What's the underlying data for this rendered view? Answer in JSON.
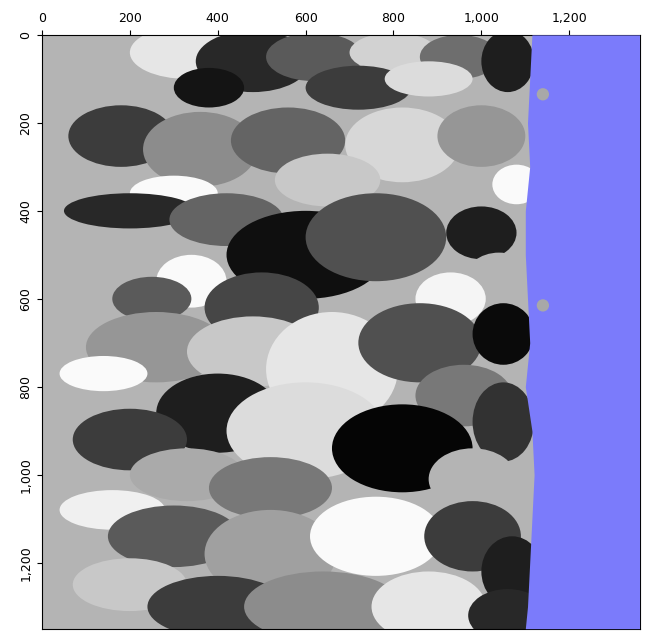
{
  "chart_data": {
    "type": "facies_map",
    "xlim": [
      0,
      1360
    ],
    "ylim": [
      1350,
      0
    ],
    "xticks": [
      0,
      200,
      400,
      600,
      800,
      {
        "value": 1000,
        "label": "1,000"
      },
      {
        "value": 1200,
        "label": "1,200"
      }
    ],
    "yticks": [
      0,
      200,
      400,
      600,
      800,
      {
        "value": 1000,
        "label": "1,000"
      },
      {
        "value": 1200,
        "label": "1,200"
      }
    ],
    "background": "#b4b4b4",
    "water_color": "#7b7bfb",
    "dot_color": "#a8a8a8",
    "boundary": {
      "y": [
        0,
        100,
        200,
        300,
        400,
        500,
        600,
        700,
        800,
        900,
        1000,
        1100,
        1200,
        1300,
        1350
      ],
      "x": [
        1115,
        1110,
        1105,
        1110,
        1100,
        1100,
        1105,
        1110,
        1100,
        1115,
        1120,
        1115,
        1110,
        1105,
        1100
      ]
    },
    "dots": [
      {
        "x": 1140,
        "y": 135,
        "r": 14
      },
      {
        "x": 1140,
        "y": 615,
        "r": 14
      }
    ],
    "lenses": [
      {
        "x": 330,
        "y": 40,
        "w": 260,
        "h": 120,
        "shade": 230
      },
      {
        "x": 480,
        "y": 60,
        "w": 260,
        "h": 140,
        "shade": 40
      },
      {
        "x": 620,
        "y": 50,
        "w": 220,
        "h": 110,
        "shade": 90
      },
      {
        "x": 800,
        "y": 40,
        "w": 200,
        "h": 90,
        "shade": 210
      },
      {
        "x": 950,
        "y": 50,
        "w": 180,
        "h": 100,
        "shade": 110
      },
      {
        "x": 1060,
        "y": 60,
        "w": 120,
        "h": 140,
        "shade": 30
      },
      {
        "x": 380,
        "y": 120,
        "w": 160,
        "h": 90,
        "shade": 20
      },
      {
        "x": 720,
        "y": 120,
        "w": 240,
        "h": 100,
        "shade": 60
      },
      {
        "x": 880,
        "y": 100,
        "w": 200,
        "h": 80,
        "shade": 220
      },
      {
        "x": 180,
        "y": 230,
        "w": 240,
        "h": 140,
        "shade": 60
      },
      {
        "x": 360,
        "y": 260,
        "w": 260,
        "h": 170,
        "shade": 140
      },
      {
        "x": 560,
        "y": 240,
        "w": 260,
        "h": 150,
        "shade": 100
      },
      {
        "x": 820,
        "y": 250,
        "w": 260,
        "h": 170,
        "shade": 215
      },
      {
        "x": 1000,
        "y": 230,
        "w": 200,
        "h": 140,
        "shade": 150
      },
      {
        "x": 1080,
        "y": 340,
        "w": 110,
        "h": 90,
        "shade": 250
      },
      {
        "x": 650,
        "y": 330,
        "w": 240,
        "h": 120,
        "shade": 200
      },
      {
        "x": 300,
        "y": 360,
        "w": 200,
        "h": 80,
        "shade": 250
      },
      {
        "x": 200,
        "y": 400,
        "w": 300,
        "h": 80,
        "shade": 40
      },
      {
        "x": 420,
        "y": 420,
        "w": 260,
        "h": 120,
        "shade": 100
      },
      {
        "x": 600,
        "y": 500,
        "w": 360,
        "h": 200,
        "shade": 15
      },
      {
        "x": 760,
        "y": 460,
        "w": 320,
        "h": 200,
        "shade": 80
      },
      {
        "x": 1000,
        "y": 450,
        "w": 160,
        "h": 120,
        "shade": 30
      },
      {
        "x": 1040,
        "y": 560,
        "w": 160,
        "h": 130,
        "shade": 180
      },
      {
        "x": 340,
        "y": 560,
        "w": 160,
        "h": 120,
        "shade": 250
      },
      {
        "x": 500,
        "y": 620,
        "w": 260,
        "h": 160,
        "shade": 70
      },
      {
        "x": 930,
        "y": 600,
        "w": 160,
        "h": 120,
        "shade": 245
      },
      {
        "x": 250,
        "y": 600,
        "w": 180,
        "h": 100,
        "shade": 90
      },
      {
        "x": 260,
        "y": 710,
        "w": 320,
        "h": 160,
        "shade": 150
      },
      {
        "x": 480,
        "y": 720,
        "w": 300,
        "h": 160,
        "shade": 200
      },
      {
        "x": 660,
        "y": 760,
        "w": 300,
        "h": 260,
        "shade": 230
      },
      {
        "x": 860,
        "y": 700,
        "w": 280,
        "h": 180,
        "shade": 80
      },
      {
        "x": 1050,
        "y": 680,
        "w": 140,
        "h": 140,
        "shade": 10
      },
      {
        "x": 140,
        "y": 770,
        "w": 200,
        "h": 80,
        "shade": 250
      },
      {
        "x": 400,
        "y": 860,
        "w": 280,
        "h": 180,
        "shade": 30
      },
      {
        "x": 960,
        "y": 820,
        "w": 220,
        "h": 140,
        "shade": 120
      },
      {
        "x": 200,
        "y": 920,
        "w": 260,
        "h": 140,
        "shade": 60
      },
      {
        "x": 600,
        "y": 900,
        "w": 360,
        "h": 220,
        "shade": 220
      },
      {
        "x": 820,
        "y": 940,
        "w": 320,
        "h": 200,
        "shade": 5
      },
      {
        "x": 1050,
        "y": 880,
        "w": 140,
        "h": 180,
        "shade": 50
      },
      {
        "x": 330,
        "y": 1000,
        "w": 260,
        "h": 120,
        "shade": 170
      },
      {
        "x": 520,
        "y": 1030,
        "w": 280,
        "h": 140,
        "shade": 120
      },
      {
        "x": 980,
        "y": 1010,
        "w": 200,
        "h": 140,
        "shade": 180
      },
      {
        "x": 160,
        "y": 1080,
        "w": 240,
        "h": 90,
        "shade": 240
      },
      {
        "x": 300,
        "y": 1140,
        "w": 300,
        "h": 140,
        "shade": 90
      },
      {
        "x": 520,
        "y": 1180,
        "w": 300,
        "h": 200,
        "shade": 160
      },
      {
        "x": 760,
        "y": 1140,
        "w": 300,
        "h": 180,
        "shade": 250
      },
      {
        "x": 980,
        "y": 1140,
        "w": 220,
        "h": 160,
        "shade": 60
      },
      {
        "x": 1070,
        "y": 1220,
        "w": 140,
        "h": 160,
        "shade": 30
      },
      {
        "x": 200,
        "y": 1250,
        "w": 260,
        "h": 120,
        "shade": 200
      },
      {
        "x": 400,
        "y": 1300,
        "w": 320,
        "h": 140,
        "shade": 60
      },
      {
        "x": 640,
        "y": 1300,
        "w": 360,
        "h": 160,
        "shade": 140
      },
      {
        "x": 880,
        "y": 1300,
        "w": 260,
        "h": 160,
        "shade": 230
      },
      {
        "x": 1060,
        "y": 1320,
        "w": 180,
        "h": 120,
        "shade": 40
      }
    ]
  }
}
